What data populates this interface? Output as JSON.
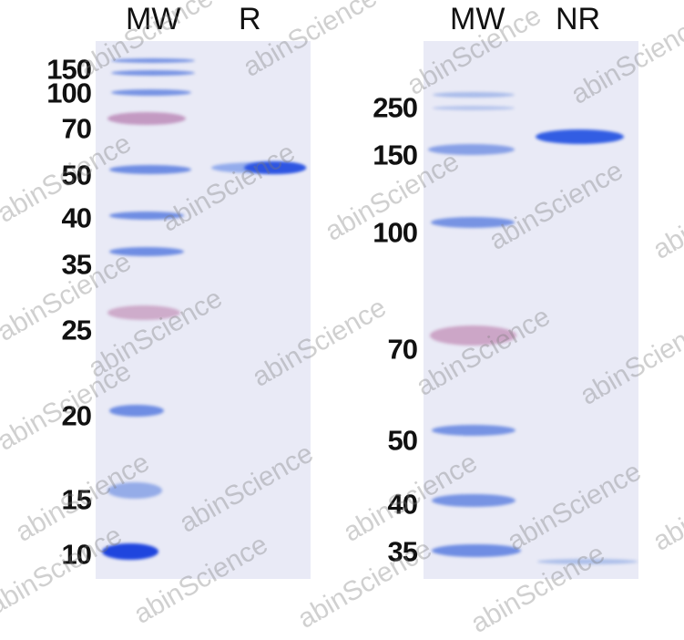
{
  "left_panel": {
    "lane_labels": [
      "MW",
      "R"
    ],
    "marker_labels": [
      "150",
      "100",
      "70",
      "50",
      "40",
      "35",
      "25",
      "20",
      "15",
      "10"
    ]
  },
  "right_panel": {
    "lane_labels": [
      "MW",
      "NR"
    ],
    "marker_labels": [
      "250",
      "150",
      "100",
      "70",
      "50",
      "40",
      "35"
    ]
  },
  "watermark": "abinScience",
  "colors": {
    "gel": "#e9eaf6",
    "band_blue": "#3a5ee0",
    "band_pink": "#b87aa8"
  }
}
